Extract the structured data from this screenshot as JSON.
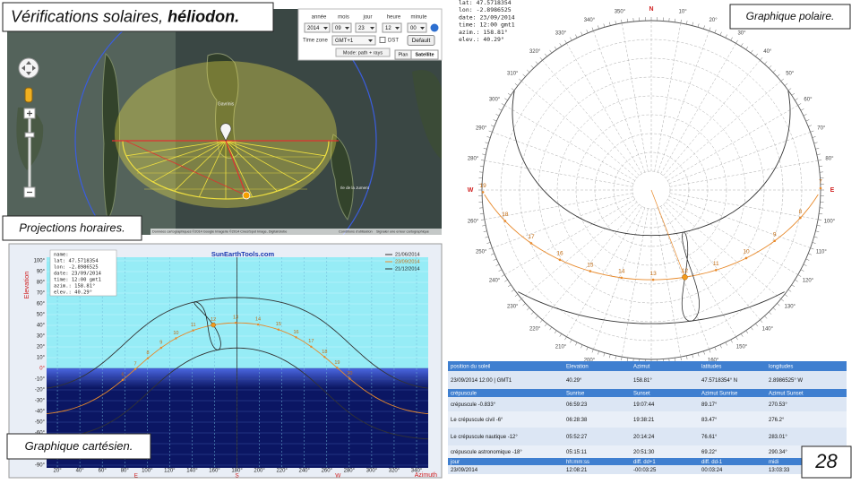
{
  "title": {
    "main": "Vérifications solaires,",
    "emphasis": "héliodon."
  },
  "map": {
    "date_controls": [
      {
        "label": "année",
        "value": "2014"
      },
      {
        "label": "mois",
        "value": "09"
      },
      {
        "label": "jour",
        "value": "23"
      },
      {
        "label": "heure",
        "value": "12"
      },
      {
        "label": "minute",
        "value": "00"
      }
    ],
    "timezone_label": "Time zone",
    "timezone": "GMT+1",
    "dst_label": "DST",
    "default_button": "Default",
    "mode": "Mode: path + rays",
    "map_types": [
      "Plan",
      "Satellite"
    ],
    "place_labels": [
      "Gavrinis",
      "Ile de la Jument"
    ],
    "attribution": "Données cartographiques ©2014 Google Imagerie ©2014 Cnes/Spot Image, DigitalGlobe",
    "terms": "Conditions d'utilisation",
    "report": "Signaler une erreur cartographique",
    "caption": "Projections horaires."
  },
  "cartesian": {
    "caption": "Graphique cartésien.",
    "site": "SunEarthTools.com",
    "info": [
      "name:",
      "lat: 47.5718354",
      "lon: -2.8986525",
      "date: 23/09/2014",
      "time: 12:00 gmt1",
      "azim.: 158.81°",
      "elev.: 40.29°"
    ],
    "legend": [
      "21/06/2014",
      "23/09/2014",
      "21/12/2014"
    ],
    "y_axis_label": "Elevation",
    "x_axis_label": "Azimuth",
    "yticks": [
      "100°",
      "90°",
      "80°",
      "70°",
      "60°",
      "50°",
      "40°",
      "30°",
      "20°",
      "10°",
      "0°",
      "-10°",
      "-20°",
      "-30°",
      "-40°",
      "-50°",
      "-60°",
      "-70°",
      "-80°",
      "-90°"
    ],
    "xticks": [
      "20°",
      "40°",
      "60°",
      "80°",
      "100°",
      "120°",
      "140°",
      "160°",
      "180°",
      "200°",
      "220°",
      "240°",
      "260°",
      "280°",
      "300°",
      "320°",
      "340°"
    ],
    "cardinals": [
      "E",
      "S",
      "W"
    ],
    "hour_labels": [
      "6",
      "7",
      "8",
      "9",
      "10",
      "11",
      "12",
      "13",
      "14",
      "15",
      "16",
      "17",
      "18",
      "19",
      "20"
    ]
  },
  "polar": {
    "caption": "Graphique polaire.",
    "info": [
      "lat: 47.5718354",
      "lon: -2.8986525",
      "date: 23/09/2014",
      "time: 12:00 gmt1",
      "azim.: 158.81°",
      "elev.: 40.29°"
    ],
    "azimuth_labels": [
      "N",
      "10°",
      "20°",
      "30°",
      "40°",
      "50°",
      "60°",
      "70°",
      "80°",
      "E",
      "100°",
      "110°",
      "120°",
      "130°",
      "140°",
      "150°",
      "160°",
      "170°",
      "S",
      "190°",
      "200°",
      "210°",
      "220°",
      "230°",
      "240°",
      "250°",
      "260°",
      "W",
      "280°",
      "290°",
      "300°",
      "310°",
      "320°",
      "330°",
      "340°",
      "350°"
    ],
    "hour_labels": [
      "7",
      "8",
      "9",
      "10",
      "11",
      "12",
      "13",
      "14",
      "15",
      "16",
      "17",
      "18",
      "19"
    ]
  },
  "table": {
    "sections": [
      {
        "header": [
          "position du soleil",
          "Elevation",
          "Azimut",
          "latitudes",
          "longitudes"
        ],
        "rows": [
          [
            "23/09/2014  12:00 | GMT1",
            "40.29°",
            "158.81°",
            "47.5718354° N",
            "2.8986525° W"
          ]
        ]
      },
      {
        "header": [
          "crépuscule",
          "Sunrise",
          "Sunset",
          "Azimut Sunrise",
          "Azimut Sunset"
        ],
        "rows": [
          [
            "crépuscule -0.833°",
            "06:59:23",
            "19:07:44",
            "89.17°",
            "270.53°"
          ],
          [
            "Le crépuscule civil -6°",
            "06:28:38",
            "19:38:21",
            "83.47°",
            "276.2°"
          ],
          [
            "Le crépuscule nautique -12°",
            "05:52:27",
            "20:14:24",
            "76.61°",
            "283.01°"
          ],
          [
            "crépuscule astronomique -18°",
            "05:15:11",
            "20:51:30",
            "69.22°",
            "290.34°"
          ]
        ]
      },
      {
        "header": [
          "jour",
          "hh:mm:ss",
          "diff. dd+1",
          "diff. dd-1",
          "midi"
        ],
        "rows": [
          [
            "23/09/2014",
            "12:08:21",
            "-00:03:25",
            "00:03:24",
            "13:03:33"
          ]
        ]
      }
    ]
  },
  "page_number": "28"
}
